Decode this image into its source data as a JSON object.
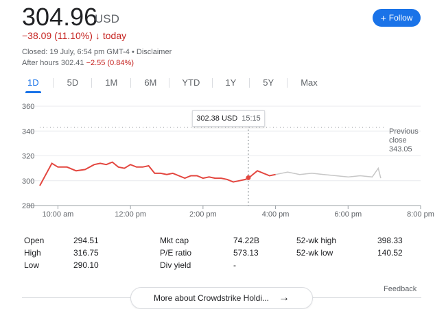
{
  "quote": {
    "price": "304.96",
    "currency": "USD",
    "change": "−38.09 (11.10%)",
    "change_arrow": "↓",
    "change_period": "today",
    "closed_text": "Closed: 19 July, 6:54 pm GMT-4 •",
    "disclaimer": "Disclaimer",
    "after_hours_label": "After hours 302.41",
    "after_hours_change": "−2.55 (0.84%)"
  },
  "follow_button": {
    "icon": "+",
    "label": "Follow"
  },
  "ranges": [
    "1D",
    "5D",
    "1M",
    "6M",
    "YTD",
    "1Y",
    "5Y",
    "Max"
  ],
  "active_range": "1D",
  "tooltip": {
    "value": "302.38 USD",
    "time": "15:15"
  },
  "chart_data": {
    "type": "line",
    "y_ticks": [
      "360",
      "340",
      "320",
      "300",
      "280"
    ],
    "x_ticks": [
      "10:00 am",
      "12:00 pm",
      "2:00 pm",
      "4:00 pm",
      "6:00 pm",
      "8:00 pm"
    ],
    "ylim": [
      280,
      360
    ],
    "previous_close": {
      "label_1": "Previous",
      "label_2": "close",
      "value": "343.05",
      "level": 343.05
    },
    "colors": {
      "regular": "#e3463f",
      "after_hours": "#c7c7c7",
      "grid": "#e8eaed"
    },
    "series": [
      {
        "session": "regular",
        "x": [
          "9:30",
          "9:40",
          "9:50",
          "10:00",
          "10:15",
          "10:30",
          "10:45",
          "11:00",
          "11:10",
          "11:20",
          "11:30",
          "11:40",
          "11:50",
          "12:00",
          "12:10",
          "12:20",
          "12:30",
          "12:40",
          "12:50",
          "1:00",
          "1:10",
          "1:20",
          "1:30",
          "1:40",
          "1:50",
          "2:00",
          "2:10",
          "2:20",
          "2:30",
          "2:40",
          "2:50",
          "3:00",
          "3:10",
          "3:15",
          "3:20",
          "3:30",
          "3:40",
          "3:50",
          "4:00"
        ],
        "values": [
          296,
          305,
          314,
          311,
          311,
          308,
          309,
          313,
          314,
          313,
          315,
          311,
          310,
          313,
          311,
          311,
          312,
          306,
          306,
          305,
          306,
          304,
          302,
          304,
          304,
          302,
          303,
          302,
          302,
          301,
          299,
          300,
          301,
          302,
          304,
          308,
          306,
          304,
          305
        ]
      },
      {
        "session": "after_hours",
        "x": [
          "4:00",
          "4:20",
          "4:40",
          "5:00",
          "5:20",
          "5:40",
          "6:00",
          "6:20",
          "6:40",
          "6:50",
          "6:54"
        ],
        "values": [
          305,
          307,
          305,
          306,
          305,
          304,
          303,
          304,
          303,
          310,
          302
        ]
      }
    ]
  },
  "stats": [
    {
      "label": "Open",
      "value": "294.51"
    },
    {
      "label": "High",
      "value": "316.75"
    },
    {
      "label": "Low",
      "value": "290.10"
    },
    {
      "label": "Mkt cap",
      "value": "74.22B"
    },
    {
      "label": "P/E ratio",
      "value": "573.13"
    },
    {
      "label": "Div yield",
      "value": "-"
    },
    {
      "label": "52-wk high",
      "value": "398.33"
    },
    {
      "label": "52-wk low",
      "value": "140.52"
    }
  ],
  "feedback_label": "Feedback",
  "more_button": {
    "label": "More about Crowdstrike Holdi...",
    "arrow": "→"
  }
}
